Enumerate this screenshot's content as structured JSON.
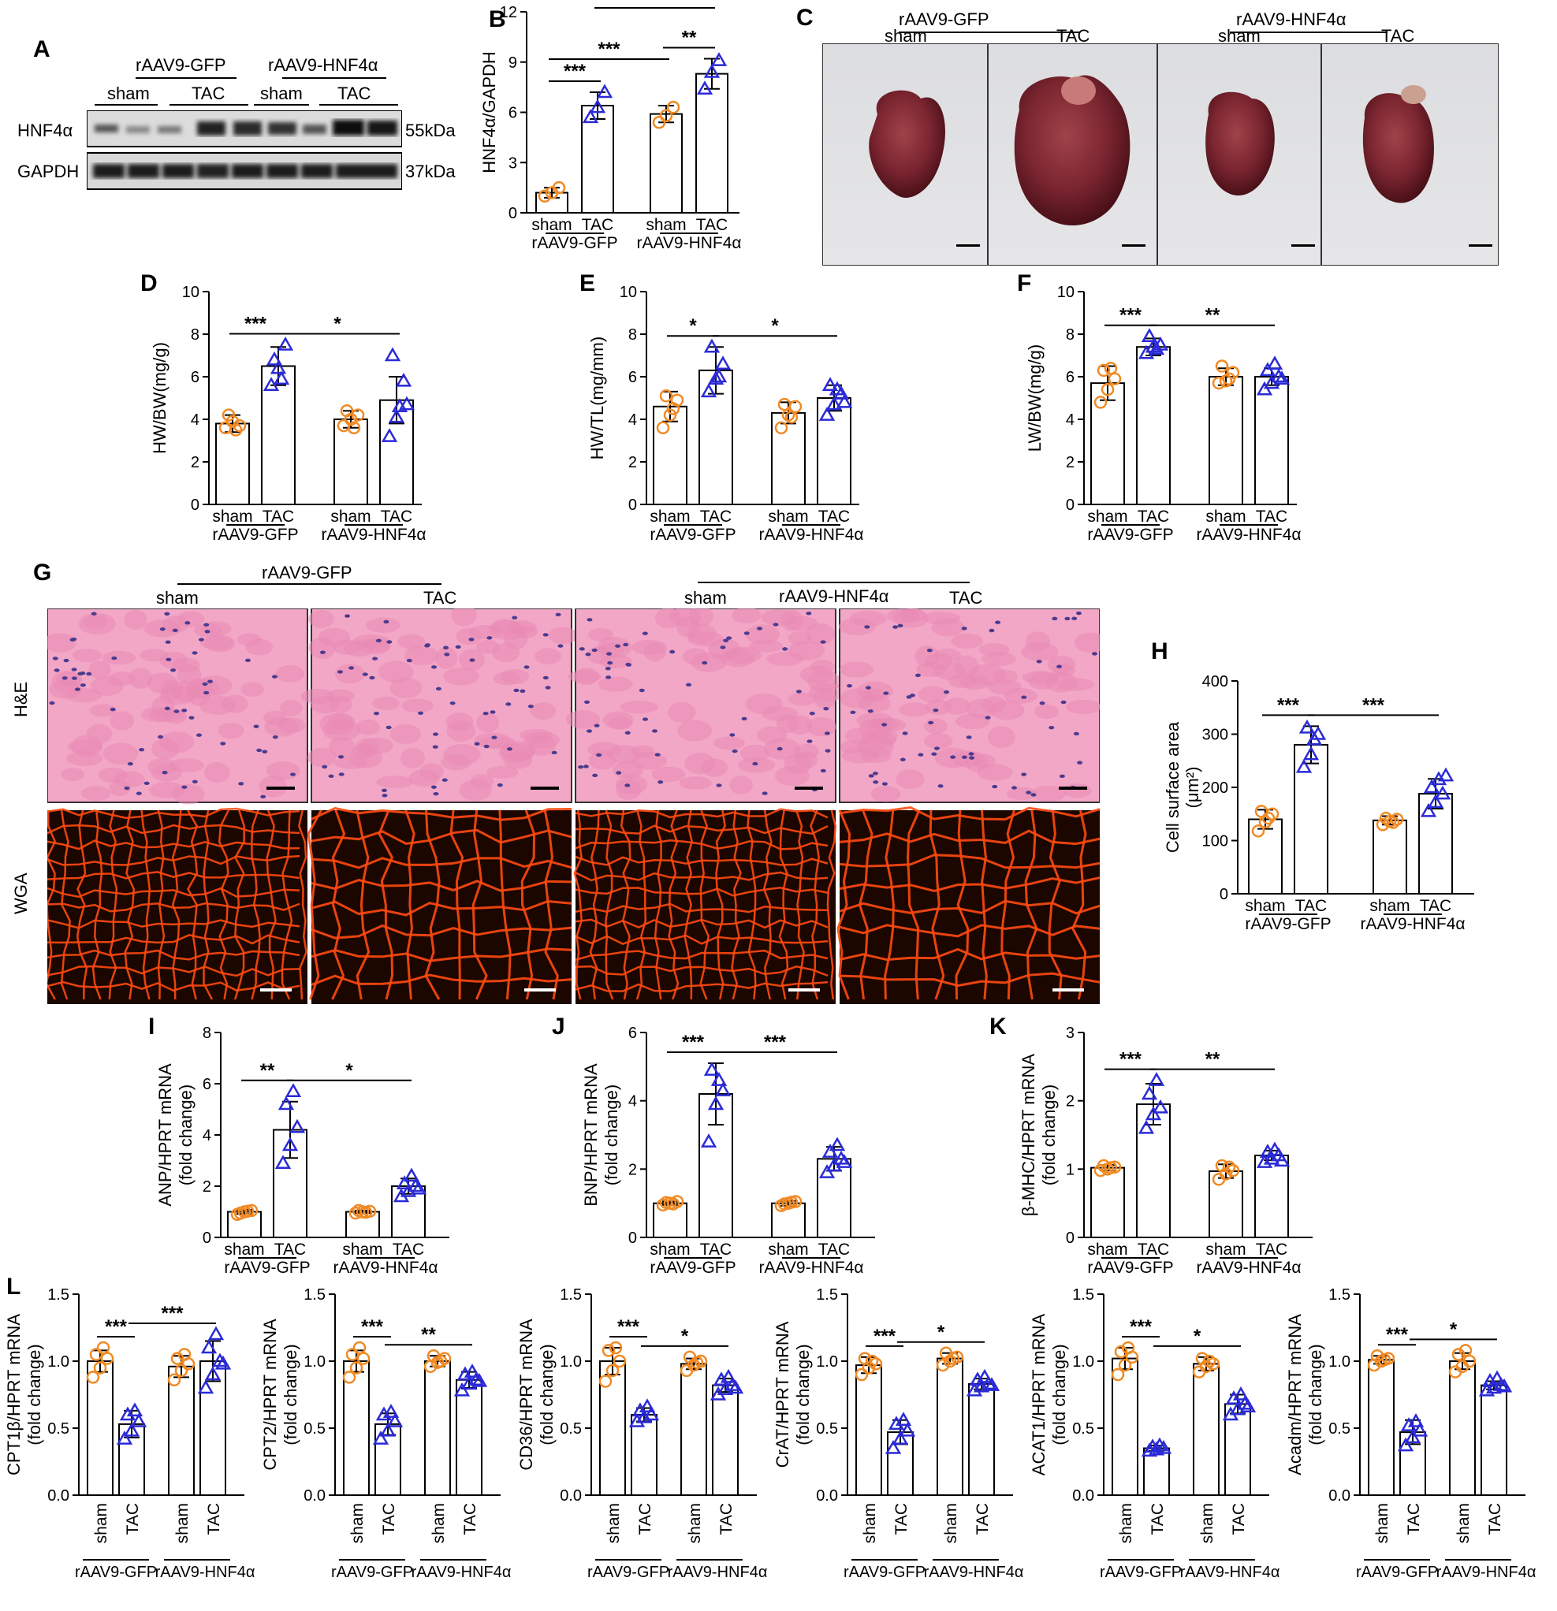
{
  "panel_letters": {
    "A": "A",
    "B": "B",
    "C": "C",
    "D": "D",
    "E": "E",
    "F": "F",
    "G": "G",
    "H": "H",
    "I": "I",
    "J": "J",
    "K": "K",
    "L": "L"
  },
  "groups": {
    "gfp": "rAAV9-GFP",
    "hnf": "rAAV9-HNF4α",
    "sham": "sham",
    "tac": "TAC"
  },
  "blot": {
    "rows": [
      {
        "protein": "HNF4α",
        "size": "55kDa"
      },
      {
        "protein": "GAPDH",
        "size": "37kDa"
      }
    ]
  },
  "histo": {
    "rows": [
      "H&E",
      "WGA"
    ]
  },
  "colors": {
    "sham": "#f08a24",
    "tac": "#2a2ad8",
    "he_bg": "#f2a7c6",
    "he_cell": "#e98ab5",
    "he_nucleus": "#4b3b8f",
    "wga_bg": "#1c0600",
    "wga_line": "#ff4a10"
  },
  "chart_data": [
    {
      "id": "B",
      "type": "bar",
      "ylabel": "HNF4α/GAPDH",
      "ylim": [
        0,
        12
      ],
      "yticks": [
        "0",
        "3",
        "6",
        "9",
        "12"
      ],
      "categories": [
        "sham",
        "TAC",
        "sham",
        "TAC"
      ],
      "means": [
        1.2,
        6.4,
        5.9,
        8.3
      ],
      "sd": [
        0.3,
        0.8,
        0.5,
        0.9
      ],
      "points": [
        [
          1.0,
          1.2,
          1.5
        ],
        [
          5.7,
          6.3,
          7.2
        ],
        [
          5.4,
          5.8,
          6.3
        ],
        [
          7.4,
          8.4,
          9.1
        ]
      ],
      "sig": [
        {
          "text": "***",
          "from": 0,
          "to": 1,
          "level": 1
        },
        {
          "text": "**",
          "from": 2,
          "to": 3,
          "level": 1
        },
        {
          "text": "***",
          "from": 0,
          "to": 2,
          "level": 2
        },
        {
          "text": "*",
          "from": 1,
          "to": 3,
          "level": 3
        }
      ]
    },
    {
      "id": "D",
      "type": "bar",
      "ylabel": "HW/BW(mg/g)",
      "ylim": [
        0,
        10
      ],
      "yticks": [
        "0",
        "2",
        "4",
        "6",
        "8",
        "10"
      ],
      "categories": [
        "sham",
        "TAC",
        "sham",
        "TAC"
      ],
      "means": [
        3.8,
        6.5,
        4.0,
        4.9
      ],
      "sd": [
        0.4,
        0.9,
        0.4,
        1.1
      ],
      "points": [
        [
          3.6,
          3.9,
          3.7,
          4.2,
          3.5
        ],
        [
          5.6,
          6.4,
          7.5,
          6.8,
          5.9
        ],
        [
          3.7,
          4.0,
          4.2,
          4.4,
          3.6
        ],
        [
          3.2,
          4.1,
          5.8,
          7.0,
          4.6,
          4.7
        ]
      ],
      "sig": [
        {
          "text": "***",
          "from": 0,
          "to": 1,
          "level": 1
        },
        {
          "text": "*",
          "from": 1,
          "to": 3,
          "level": 1
        }
      ]
    },
    {
      "id": "E",
      "type": "bar",
      "ylabel": "HW/TL(mg/mm)",
      "ylim": [
        0,
        10
      ],
      "yticks": [
        "0",
        "2",
        "4",
        "6",
        "8",
        "10"
      ],
      "categories": [
        "sham",
        "TAC",
        "sham",
        "TAC"
      ],
      "means": [
        4.6,
        6.3,
        4.3,
        5.0
      ],
      "sd": [
        0.7,
        1.1,
        0.5,
        0.6
      ],
      "points": [
        [
          3.6,
          4.2,
          4.9,
          5.1,
          4.5
        ],
        [
          5.3,
          5.9,
          6.6,
          7.4,
          6.0
        ],
        [
          3.6,
          4.2,
          4.6,
          4.7,
          4.1
        ],
        [
          4.2,
          4.7,
          5.2,
          5.6,
          5.4,
          4.8
        ]
      ],
      "sig": [
        {
          "text": "*",
          "from": 0,
          "to": 1,
          "level": 1
        },
        {
          "text": "*",
          "from": 1,
          "to": 3,
          "level": 1
        }
      ]
    },
    {
      "id": "F",
      "type": "bar",
      "ylabel": "LW/BW(mg/g)",
      "ylim": [
        0,
        10
      ],
      "yticks": [
        "0",
        "2",
        "4",
        "6",
        "8",
        "10"
      ],
      "categories": [
        "sham",
        "TAC",
        "sham",
        "TAC"
      ],
      "means": [
        5.7,
        7.4,
        6.0,
        6.0
      ],
      "sd": [
        0.8,
        0.4,
        0.4,
        0.4
      ],
      "points": [
        [
          4.8,
          5.4,
          5.9,
          6.3,
          6.4
        ],
        [
          7.1,
          7.4,
          7.5,
          7.9,
          7.3
        ],
        [
          5.7,
          5.8,
          6.2,
          6.5,
          5.9
        ],
        [
          5.4,
          5.7,
          6.0,
          6.3,
          6.6,
          5.9
        ]
      ],
      "sig": [
        {
          "text": "***",
          "from": 0,
          "to": 1,
          "level": 1
        },
        {
          "text": "**",
          "from": 1,
          "to": 3,
          "level": 1
        }
      ]
    },
    {
      "id": "H",
      "type": "bar",
      "ylabel": "Cell surface area",
      "ylabel2": "(μm²)",
      "ylim": [
        0,
        400
      ],
      "yticks": [
        "0",
        "100",
        "200",
        "300",
        "400"
      ],
      "categories": [
        "sham",
        "TAC",
        "sham",
        "TAC"
      ],
      "means": [
        140,
        280,
        138,
        188
      ],
      "sd": [
        18,
        35,
        8,
        28
      ],
      "points": [
        [
          118,
          135,
          150,
          155,
          142
        ],
        [
          238,
          262,
          300,
          312,
          290
        ],
        [
          130,
          136,
          140,
          142,
          134
        ],
        [
          155,
          172,
          188,
          200,
          215,
          222
        ]
      ],
      "sig": [
        {
          "text": "***",
          "from": 0,
          "to": 1,
          "level": 1
        },
        {
          "text": "***",
          "from": 1,
          "to": 3,
          "level": 1
        }
      ]
    },
    {
      "id": "I",
      "type": "bar",
      "ylabel": "ANP/HPRT mRNA",
      "ylabel2": "(fold change)",
      "ylim": [
        0,
        8
      ],
      "yticks": [
        "0",
        "2",
        "4",
        "6",
        "8"
      ],
      "categories": [
        "sham",
        "TAC",
        "sham",
        "TAC"
      ],
      "means": [
        1.0,
        4.2,
        1.0,
        2.0
      ],
      "sd": [
        0.08,
        1.1,
        0.05,
        0.3
      ],
      "points": [
        [
          0.9,
          1.0,
          1.05,
          0.95,
          1.02
        ],
        [
          2.9,
          3.6,
          4.3,
          5.2,
          5.7
        ],
        [
          0.95,
          1.0,
          1.02,
          1.05,
          0.98
        ],
        [
          1.6,
          1.8,
          2.0,
          2.1,
          2.4,
          1.9
        ]
      ],
      "sig": [
        {
          "text": "**",
          "from": 0,
          "to": 1,
          "level": 1
        },
        {
          "text": "*",
          "from": 1,
          "to": 3,
          "level": 1
        }
      ]
    },
    {
      "id": "J",
      "type": "bar",
      "ylabel": "BNP/HPRT mRNA",
      "ylabel2": "(fold change)",
      "ylim": [
        0,
        6
      ],
      "yticks": [
        "0",
        "2",
        "4",
        "6"
      ],
      "categories": [
        "sham",
        "TAC",
        "sham",
        "TAC"
      ],
      "means": [
        1.0,
        4.2,
        1.0,
        2.3
      ],
      "sd": [
        0.05,
        0.9,
        0.07,
        0.35
      ],
      "points": [
        [
          0.95,
          1.0,
          1.05,
          1.02,
          0.98
        ],
        [
          2.8,
          3.9,
          4.3,
          4.9,
          4.6
        ],
        [
          0.93,
          1.0,
          1.05,
          0.98,
          1.03
        ],
        [
          1.9,
          2.1,
          2.3,
          2.5,
          2.7,
          2.2
        ]
      ],
      "sig": [
        {
          "text": "***",
          "from": 0,
          "to": 1,
          "level": 1
        },
        {
          "text": "***",
          "from": 1,
          "to": 3,
          "level": 1
        }
      ]
    },
    {
      "id": "K",
      "type": "bar",
      "ylabel": "β-MHC/HPRT mRNA",
      "ylabel2": "(fold change)",
      "ylim": [
        0,
        3
      ],
      "yticks": [
        "0",
        "1",
        "2",
        "3"
      ],
      "categories": [
        "sham",
        "TAC",
        "sham",
        "TAC"
      ],
      "means": [
        1.02,
        1.95,
        0.97,
        1.2
      ],
      "sd": [
        0.04,
        0.3,
        0.1,
        0.07
      ],
      "points": [
        [
          0.98,
          1.0,
          1.03,
          1.05,
          1.02
        ],
        [
          1.6,
          1.8,
          1.9,
          2.1,
          2.3
        ],
        [
          0.85,
          0.93,
          0.98,
          1.05,
          1.03
        ],
        [
          1.1,
          1.15,
          1.2,
          1.25,
          1.28,
          1.12
        ]
      ],
      "sig": [
        {
          "text": "***",
          "from": 0,
          "to": 1,
          "level": 1
        },
        {
          "text": "**",
          "from": 1,
          "to": 3,
          "level": 1
        }
      ]
    },
    {
      "id": "L1",
      "type": "bar",
      "ylabel": "CPT1β/HPRT mRNA",
      "ylabel2": "(fold change)",
      "ylim": [
        0,
        1.5
      ],
      "yticks": [
        "0.0",
        "0.5",
        "1.0",
        "1.5"
      ],
      "categories": [
        "sham",
        "TAC",
        "sham",
        "TAC"
      ],
      "means": [
        1.0,
        0.53,
        0.96,
        1.0
      ],
      "sd": [
        0.08,
        0.1,
        0.08,
        0.15
      ],
      "points": [
        [
          0.88,
          0.95,
          1.02,
          1.05,
          1.1
        ],
        [
          0.42,
          0.48,
          0.55,
          0.6,
          0.63
        ],
        [
          0.86,
          0.93,
          0.98,
          1.02,
          1.05
        ],
        [
          0.8,
          0.9,
          1.0,
          1.1,
          1.2,
          0.98
        ]
      ],
      "sig": [
        {
          "text": "***",
          "from": 0,
          "to": 1,
          "level": 1
        },
        {
          "text": "***",
          "from": 1,
          "to": 3,
          "level": 1
        }
      ],
      "rotated": true
    },
    {
      "id": "L2",
      "type": "bar",
      "ylabel": "CPT2/HPRT mRNA",
      "ylabel2": "(fold change)",
      "ylim": [
        0,
        1.5
      ],
      "yticks": [
        "0.0",
        "0.5",
        "1.0",
        "1.5"
      ],
      "categories": [
        "sham",
        "TAC",
        "sham",
        "TAC"
      ],
      "means": [
        1.0,
        0.53,
        1.0,
        0.86
      ],
      "sd": [
        0.08,
        0.08,
        0.04,
        0.06
      ],
      "points": [
        [
          0.88,
          0.95,
          1.02,
          1.05,
          1.1
        ],
        [
          0.42,
          0.48,
          0.55,
          0.6,
          0.62
        ],
        [
          0.96,
          0.99,
          1.02,
          1.04,
          1.0
        ],
        [
          0.78,
          0.83,
          0.86,
          0.9,
          0.92,
          0.85
        ]
      ],
      "sig": [
        {
          "text": "***",
          "from": 0,
          "to": 1,
          "level": 1
        },
        {
          "text": "**",
          "from": 1,
          "to": 3,
          "level": 1
        }
      ],
      "rotated": true
    },
    {
      "id": "L3",
      "type": "bar",
      "ylabel": "CD36/HPRT mRNA",
      "ylabel2": "(fold change)",
      "ylim": [
        0,
        1.5
      ],
      "yticks": [
        "0.0",
        "0.5",
        "1.0",
        "1.5"
      ],
      "categories": [
        "sham",
        "TAC",
        "sham",
        "TAC"
      ],
      "means": [
        1.0,
        0.6,
        0.98,
        0.82
      ],
      "sd": [
        0.1,
        0.05,
        0.04,
        0.05
      ],
      "points": [
        [
          0.85,
          0.93,
          1.0,
          1.08,
          1.1
        ],
        [
          0.55,
          0.58,
          0.6,
          0.63,
          0.66
        ],
        [
          0.93,
          0.97,
          1.0,
          1.03,
          0.99
        ],
        [
          0.75,
          0.79,
          0.82,
          0.86,
          0.88,
          0.8
        ]
      ],
      "sig": [
        {
          "text": "***",
          "from": 0,
          "to": 1,
          "level": 1
        },
        {
          "text": "*",
          "from": 1,
          "to": 3,
          "level": 1
        }
      ],
      "rotated": true
    },
    {
      "id": "L4",
      "type": "bar",
      "ylabel": "CrAT/HPRT mRNA",
      "ylabel2": "(fold change)",
      "ylim": [
        0,
        1.5
      ],
      "yticks": [
        "0.0",
        "0.5",
        "1.0",
        "1.5"
      ],
      "categories": [
        "sham",
        "TAC",
        "sham",
        "TAC"
      ],
      "means": [
        0.97,
        0.47,
        1.02,
        0.83
      ],
      "sd": [
        0.06,
        0.09,
        0.04,
        0.04
      ],
      "points": [
        [
          0.9,
          0.95,
          0.98,
          1.02,
          1.0
        ],
        [
          0.35,
          0.42,
          0.48,
          0.53,
          0.56
        ],
        [
          0.97,
          1.0,
          1.03,
          1.06,
          1.02
        ],
        [
          0.78,
          0.81,
          0.83,
          0.86,
          0.88,
          0.82
        ]
      ],
      "sig": [
        {
          "text": "***",
          "from": 0,
          "to": 1,
          "level": 1
        },
        {
          "text": "*",
          "from": 1,
          "to": 3,
          "level": 1
        }
      ],
      "rotated": true
    },
    {
      "id": "L5",
      "type": "bar",
      "ylabel": "ACAT1/HPRT mRNA",
      "ylabel2": "(fold change)",
      "ylim": [
        0,
        1.5
      ],
      "yticks": [
        "0.0",
        "0.5",
        "1.0",
        "1.5"
      ],
      "categories": [
        "sham",
        "TAC",
        "sham",
        "TAC"
      ],
      "means": [
        1.02,
        0.35,
        0.98,
        0.68
      ],
      "sd": [
        0.08,
        0.02,
        0.05,
        0.07
      ],
      "points": [
        [
          0.9,
          0.97,
          1.03,
          1.07,
          1.1
        ],
        [
          0.33,
          0.34,
          0.35,
          0.36,
          0.37
        ],
        [
          0.92,
          0.96,
          0.98,
          1.02,
          1.0
        ],
        [
          0.6,
          0.64,
          0.68,
          0.72,
          0.75,
          0.66
        ]
      ],
      "sig": [
        {
          "text": "***",
          "from": 0,
          "to": 1,
          "level": 1
        },
        {
          "text": "*",
          "from": 1,
          "to": 3,
          "level": 1
        }
      ],
      "rotated": true
    },
    {
      "id": "L6",
      "type": "bar",
      "ylabel": "Acadm/HPRT mRNA",
      "ylabel2": "(fold change)",
      "ylim": [
        0,
        1.5
      ],
      "yticks": [
        "0.0",
        "0.5",
        "1.0",
        "1.5"
      ],
      "categories": [
        "sham",
        "TAC",
        "sham",
        "TAC"
      ],
      "means": [
        1.01,
        0.47,
        1.0,
        0.82
      ],
      "sd": [
        0.03,
        0.09,
        0.06,
        0.03
      ],
      "points": [
        [
          0.97,
          1.0,
          1.02,
          1.04,
          1.01
        ],
        [
          0.37,
          0.43,
          0.48,
          0.52,
          0.55
        ],
        [
          0.92,
          0.96,
          1.0,
          1.05,
          1.08
        ],
        [
          0.78,
          0.8,
          0.82,
          0.85,
          0.87,
          0.81
        ]
      ],
      "sig": [
        {
          "text": "***",
          "from": 0,
          "to": 1,
          "level": 1
        },
        {
          "text": "*",
          "from": 1,
          "to": 3,
          "level": 1
        }
      ],
      "rotated": true
    }
  ]
}
